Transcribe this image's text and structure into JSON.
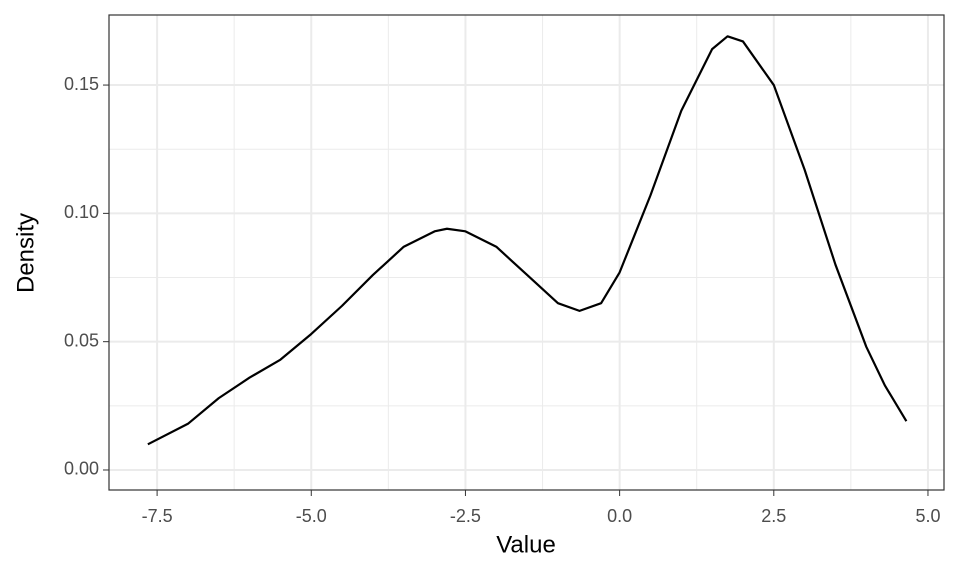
{
  "chart_data": {
    "type": "line",
    "x_label": "Value",
    "y_label": "Density",
    "x": [
      -7.65,
      -7.0,
      -6.5,
      -6.0,
      -5.5,
      -5.0,
      -4.5,
      -4.0,
      -3.5,
      -3.0,
      -2.8,
      -2.5,
      -2.0,
      -1.5,
      -1.0,
      -0.65,
      -0.3,
      0.0,
      0.5,
      1.0,
      1.5,
      1.75,
      2.0,
      2.5,
      3.0,
      3.5,
      4.0,
      4.3,
      4.65
    ],
    "series": [
      {
        "color": "#000000",
        "values": [
          0.01,
          0.018,
          0.028,
          0.036,
          0.043,
          0.053,
          0.064,
          0.076,
          0.087,
          0.093,
          0.094,
          0.093,
          0.087,
          0.076,
          0.065,
          0.062,
          0.065,
          0.077,
          0.107,
          0.14,
          0.164,
          0.169,
          0.167,
          0.15,
          0.117,
          0.08,
          0.048,
          0.033,
          0.019
        ]
      }
    ],
    "xlim": [
      -8.28,
      5.26
    ],
    "ylim": [
      -0.0078,
      0.1773
    ],
    "xticks": [
      -7.5,
      {
        "value": -5,
        "label": "-5.0"
      },
      -2.5,
      {
        "value": 0,
        "label": "0.0"
      },
      2.5,
      {
        "value": 5,
        "label": "5.0"
      }
    ],
    "yticks": [
      {
        "value": 0,
        "label": "0.00"
      },
      0.05,
      {
        "value": 0.1,
        "label": "0.10"
      },
      0.15
    ],
    "xminor_ticks": [
      -6.25,
      -3.75,
      -1.25,
      1.25,
      3.75
    ],
    "yminor_ticks": [
      0.025,
      0.075,
      0.125
    ],
    "grid": true
  }
}
